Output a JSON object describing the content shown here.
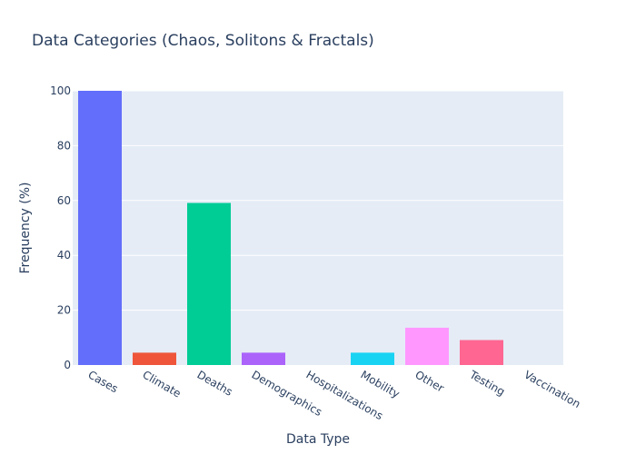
{
  "chart_data": {
    "type": "bar",
    "title": "Data Categories (Chaos, Solitons & Fractals)",
    "xlabel": "Data Type",
    "ylabel": "Frequency (%)",
    "ylim": [
      0,
      100
    ],
    "yticks": [
      0,
      20,
      40,
      60,
      80,
      100
    ],
    "grid": true,
    "categories": [
      "Cases",
      "Climate",
      "Deaths",
      "Demographics",
      "Hospitalizations",
      "Mobility",
      "Other",
      "Testing",
      "Vaccination"
    ],
    "values": [
      100,
      4.5,
      59.1,
      4.5,
      0,
      4.5,
      13.6,
      9.1,
      0
    ],
    "colors": [
      "#636efa",
      "#EF553B",
      "#00cc96",
      "#ab63fa",
      "#FFA15A",
      "#19d3f3",
      "#FF97FF",
      "#FF6692",
      "#B6E880"
    ]
  },
  "colors": {
    "plot_background": "#e5ecf6",
    "grid": "#ffffff",
    "text": "#2a3f5f"
  }
}
